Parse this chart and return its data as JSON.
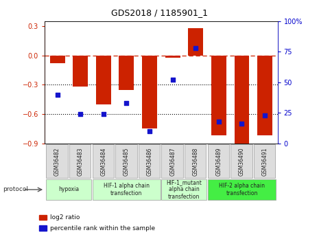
{
  "title": "GDS2018 / 1185901_1",
  "samples": [
    "GSM36482",
    "GSM36483",
    "GSM36484",
    "GSM36485",
    "GSM36486",
    "GSM36487",
    "GSM36488",
    "GSM36489",
    "GSM36490",
    "GSM36491"
  ],
  "log2_ratio": [
    -0.08,
    -0.32,
    -0.5,
    -0.35,
    -0.75,
    -0.02,
    0.28,
    -0.82,
    -0.9,
    -0.82
  ],
  "percentile_rank": [
    40,
    24,
    24,
    33,
    10,
    52,
    78,
    18,
    16,
    23
  ],
  "ylim_left": [
    -0.9,
    0.35
  ],
  "ylim_right": [
    0,
    100
  ],
  "yticks_left": [
    0.3,
    0.0,
    -0.3,
    -0.6,
    -0.9
  ],
  "yticks_right": [
    100,
    75,
    50,
    25,
    0
  ],
  "bar_color": "#CC2200",
  "dot_color": "#1414CC",
  "bg_color": "#FFFFFF",
  "plot_bg": "#FFFFFF",
  "hline_zero_color": "#CC2200",
  "dotted_line_color": "#000000",
  "title_color": "#000000",
  "left_axis_color": "#CC2200",
  "right_axis_color": "#0000CC",
  "protocol_groups": [
    {
      "label": "hypoxia",
      "start": 0,
      "end": 1,
      "color": "#CCFFCC"
    },
    {
      "label": "HIF-1 alpha chain\ntransfection",
      "start": 2,
      "end": 4,
      "color": "#CCFFCC"
    },
    {
      "label": "HIF-1_mutant\nalpha chain\ntransfection",
      "start": 5,
      "end": 6,
      "color": "#CCFFCC"
    },
    {
      "label": "HIF-2 alpha chain\ntransfection",
      "start": 7,
      "end": 9,
      "color": "#44EE44"
    }
  ]
}
